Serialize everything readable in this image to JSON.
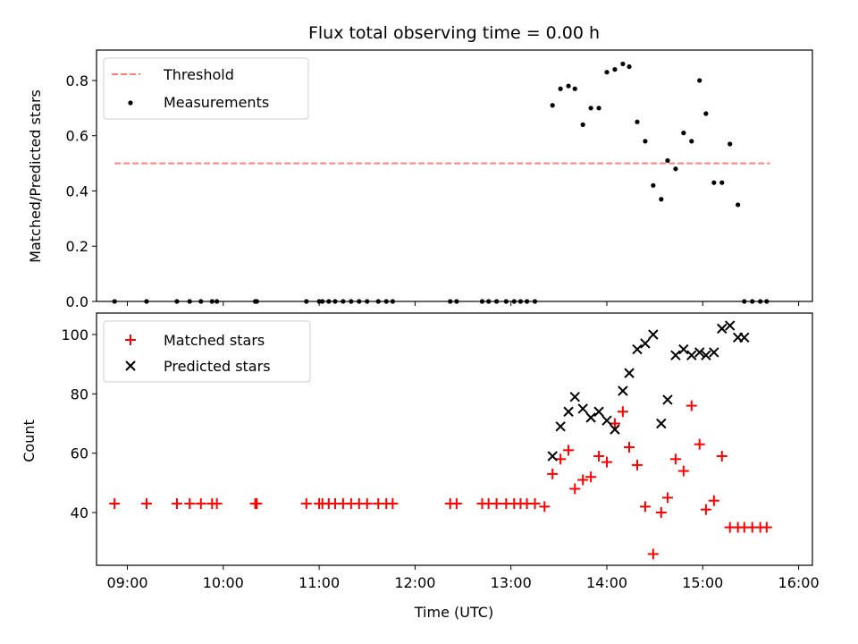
{
  "chart_data": [
    {
      "type": "scatter",
      "title": "Flux total observing time = 0.00 h",
      "xlabel": "",
      "ylabel": "Matched/Predicted stars",
      "xlim": [
        "08:30",
        "16:00"
      ],
      "ylim": [
        0,
        0.91
      ],
      "yticks": [
        0.0,
        0.2,
        0.4,
        0.6,
        0.8
      ],
      "legend_position": "top-left",
      "series": [
        {
          "name": "Threshold",
          "kind": "line",
          "style": "dashed",
          "color": "#ff7f7f",
          "x": [
            "08:52",
            "15:42"
          ],
          "y": [
            0.5,
            0.5
          ]
        },
        {
          "name": "Measurements",
          "kind": "points",
          "color": "#000000",
          "x": [
            "08:52",
            "09:12",
            "09:31",
            "09:39",
            "09:46",
            "09:53",
            "09:56",
            "10:20",
            "10:21",
            "10:52",
            "11:00",
            "11:02",
            "11:06",
            "11:10",
            "11:15",
            "11:20",
            "11:25",
            "11:30",
            "11:37",
            "11:42",
            "11:46",
            "12:22",
            "12:26",
            "12:42",
            "12:46",
            "12:51",
            "12:57",
            "13:02",
            "13:06",
            "13:10",
            "13:15",
            "13:26",
            "13:31",
            "13:36",
            "13:40",
            "13:45",
            "13:50",
            "13:55",
            "14:00",
            "14:05",
            "14:10",
            "14:14",
            "14:19",
            "14:24",
            "14:29",
            "14:34",
            "14:38",
            "14:43",
            "14:48",
            "14:53",
            "14:58",
            "15:02",
            "15:07",
            "15:12",
            "15:17",
            "15:22",
            "15:26",
            "15:31",
            "15:36",
            "15:40"
          ],
          "y": [
            0,
            0,
            0,
            0,
            0,
            0,
            0,
            0,
            0,
            0,
            0,
            0,
            0,
            0,
            0,
            0,
            0,
            0,
            0,
            0,
            0,
            0,
            0,
            0,
            0,
            0,
            0,
            0,
            0,
            0,
            0,
            0.71,
            0.77,
            0.78,
            0.77,
            0.64,
            0.7,
            0.7,
            0.83,
            0.84,
            0.86,
            0.85,
            0.65,
            0.58,
            0.42,
            0.37,
            0.51,
            0.48,
            0.61,
            0.58,
            0.8,
            0.68,
            0.43,
            0.43,
            0.57,
            0.35,
            0,
            0,
            0,
            0
          ]
        }
      ]
    },
    {
      "type": "scatter",
      "title": "",
      "xlabel": "Time (UTC)",
      "ylabel": "Count",
      "xlim": [
        "08:30",
        "16:00"
      ],
      "ylim": [
        23,
        107
      ],
      "xticks": [
        "09:00",
        "10:00",
        "11:00",
        "12:00",
        "13:00",
        "14:00",
        "15:00",
        "16:00"
      ],
      "yticks": [
        40,
        60,
        80,
        100
      ],
      "legend_position": "top-left",
      "series": [
        {
          "name": "Matched stars",
          "marker": "plus",
          "color": "#ff0000",
          "x": [
            "08:52",
            "09:12",
            "09:31",
            "09:39",
            "09:46",
            "09:53",
            "09:56",
            "10:20",
            "10:21",
            "10:52",
            "11:00",
            "11:02",
            "11:06",
            "11:10",
            "11:15",
            "11:20",
            "11:25",
            "11:30",
            "11:37",
            "11:42",
            "11:46",
            "12:22",
            "12:26",
            "12:42",
            "12:46",
            "12:51",
            "12:57",
            "13:02",
            "13:06",
            "13:10",
            "13:15",
            "13:21",
            "13:26",
            "13:31",
            "13:36",
            "13:40",
            "13:45",
            "13:50",
            "13:55",
            "14:00",
            "14:05",
            "14:10",
            "14:14",
            "14:19",
            "14:24",
            "14:29",
            "14:34",
            "14:38",
            "14:43",
            "14:48",
            "14:53",
            "14:58",
            "15:02",
            "15:07",
            "15:12",
            "15:17",
            "15:22",
            "15:26",
            "15:31",
            "15:36",
            "15:40"
          ],
          "y": [
            43,
            43,
            43,
            43,
            43,
            43,
            43,
            43,
            43,
            43,
            43,
            43,
            43,
            43,
            43,
            43,
            43,
            43,
            43,
            43,
            43,
            43,
            43,
            43,
            43,
            43,
            43,
            43,
            43,
            43,
            43,
            42,
            53,
            58,
            61,
            48,
            51,
            52,
            59,
            57,
            70,
            74,
            62,
            56,
            42,
            26,
            40,
            45,
            58,
            54,
            76,
            63,
            41,
            44,
            59,
            35,
            35,
            35,
            35,
            35,
            35
          ]
        },
        {
          "name": "Predicted stars",
          "marker": "x",
          "color": "#000000",
          "x": [
            "13:26",
            "13:31",
            "13:36",
            "13:40",
            "13:45",
            "13:50",
            "13:55",
            "14:00",
            "14:05",
            "14:10",
            "14:14",
            "14:19",
            "14:24",
            "14:29",
            "14:34",
            "14:38",
            "14:43",
            "14:48",
            "14:53",
            "14:58",
            "15:02",
            "15:07",
            "15:12",
            "15:17",
            "15:22",
            "15:26"
          ],
          "y": [
            59,
            69,
            74,
            79,
            75,
            72,
            74,
            71,
            68,
            81,
            87,
            95,
            97,
            100,
            70,
            78,
            93,
            95,
            93,
            94,
            93,
            94,
            102,
            103,
            99,
            99
          ]
        }
      ]
    }
  ]
}
